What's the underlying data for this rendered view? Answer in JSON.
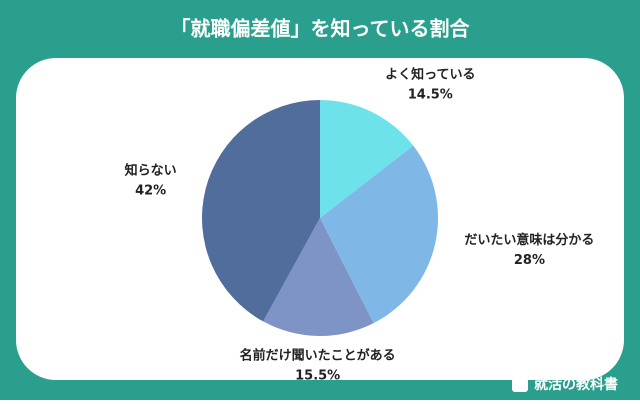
{
  "chart_data": {
    "type": "pie",
    "title": "「就職偏差値」を知っている割合",
    "categories": [
      "よく知っている",
      "だいたい意味は分かる",
      "名前だけ聞いたことがある",
      "知らない"
    ],
    "values": [
      14.5,
      28,
      15.5,
      42
    ],
    "value_labels": [
      "14.5%",
      "28%",
      "15.5%",
      "42%"
    ],
    "colors": [
      "#6ee2ea",
      "#7fb8e6",
      "#7f94c6",
      "#516d9b"
    ]
  },
  "brand": "就活の教科書"
}
